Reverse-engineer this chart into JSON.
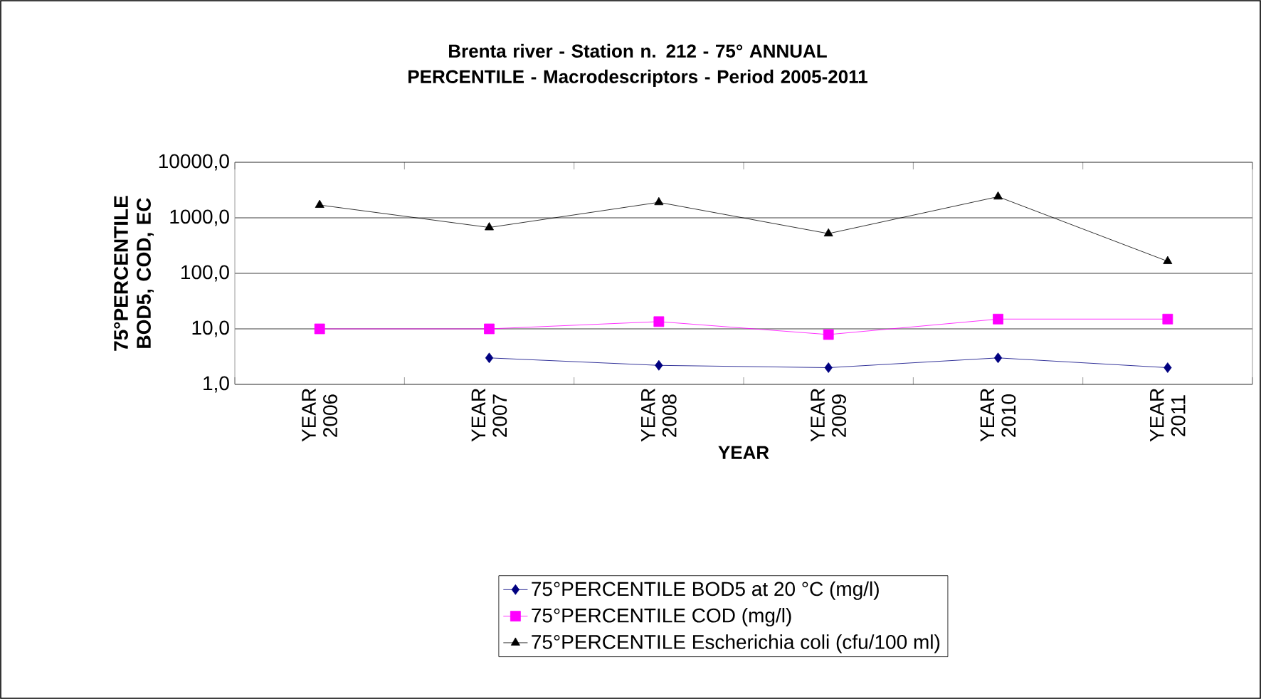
{
  "chart_data": {
    "type": "line",
    "title": "Brenta river - Station n. 212 - 75° ANNUAL PERCENTILE - Macrodescriptors - Period 2005-2011",
    "xlabel": "YEAR",
    "ylabel": "75°PERCENTILE BOD5, COD, EC",
    "categories": [
      "YEAR 2006",
      "YEAR 2007",
      "YEAR 2008",
      "YEAR 2009",
      "YEAR 2010",
      "YEAR 2011"
    ],
    "series": [
      {
        "name": "75°PERCENTILE BOD5 at 20 °C (mg/l)",
        "color": "#000080",
        "marker": "diamond",
        "values": [
          null,
          3.0,
          2.2,
          2.0,
          3.0,
          2.0
        ]
      },
      {
        "name": "75°PERCENTILE COD (mg/l)",
        "color": "#ff00ff",
        "marker": "square",
        "values": [
          10,
          10,
          13.5,
          7.9,
          15,
          15
        ]
      },
      {
        "name": "75°PERCENTILE Escherichia coli (cfu/100 ml)",
        "color": "#000000",
        "marker": "triangle",
        "values": [
          1700,
          670,
          1900,
          520,
          2400,
          165
        ]
      }
    ],
    "log": "y",
    "ylim": [
      1,
      10000
    ],
    "yticks": [
      {
        "value": 1,
        "label": "1,0"
      },
      {
        "value": 10,
        "label": "10,0"
      },
      {
        "value": 100,
        "label": "100,0"
      },
      {
        "value": 1000,
        "label": "1000,0"
      },
      {
        "value": 10000,
        "label": "10000,0"
      }
    ],
    "grid": "y",
    "legend": "bottom",
    "line_style": "solid"
  }
}
